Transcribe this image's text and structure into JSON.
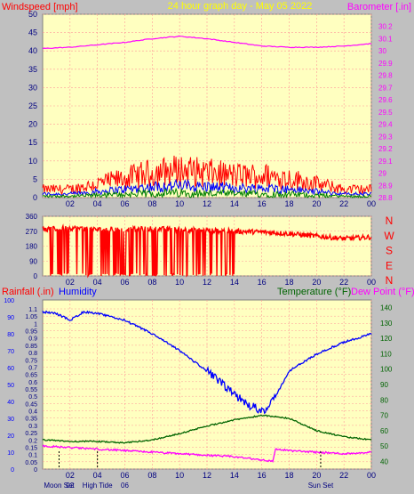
{
  "header": {
    "left_label": "Windspeed [mph]",
    "title": "24 hour graph day - May 05 2022",
    "right_label": "Barometer [.in]"
  },
  "colors": {
    "plot_bg": "#ffffc0",
    "frame_bg": "#c0c0c0",
    "wind": "#ff0000",
    "gust_fill": "#ff0000",
    "avg_wind": "#0000ff",
    "min_wind": "#008000",
    "barometer": "#ff00ff",
    "humidity": "#0000ff",
    "temperature": "#006400",
    "dewpoint": "#ff00ff",
    "grid": "#ff9999"
  },
  "chart_data": [
    {
      "type": "line",
      "title": "24 hour graph day - May 05 2022",
      "ylabel": "Windspeed [mph]",
      "y2label": "Barometer [.in]",
      "x_ticks": [
        "02",
        "04",
        "06",
        "08",
        "10",
        "12",
        "14",
        "16",
        "18",
        "20",
        "22",
        "00"
      ],
      "ylim": [
        0,
        50
      ],
      "y_ticks": [
        0,
        5,
        10,
        15,
        20,
        25,
        30,
        35,
        40,
        45,
        50
      ],
      "y2lim": [
        28.8,
        30.3
      ],
      "y2_ticks": [
        "28.8",
        "28.9",
        "29",
        "29.1",
        "29.2",
        "29.3",
        "29.4",
        "29.5",
        "29.6",
        "29.7",
        "29.8",
        "29.9",
        "30",
        "30.1",
        "30.2"
      ],
      "series": [
        {
          "name": "Windspeed",
          "x": [
            0,
            2,
            4,
            6,
            8,
            10,
            12,
            14,
            16,
            18,
            20,
            22,
            24
          ],
          "values": [
            3,
            3,
            5,
            7,
            9,
            10,
            9,
            8,
            8,
            7,
            5,
            3,
            3
          ]
        },
        {
          "name": "Barometer",
          "x": [
            0,
            2,
            4,
            6,
            8,
            10,
            12,
            14,
            16,
            18,
            20,
            22,
            24
          ],
          "values": [
            30.02,
            30.03,
            30.05,
            30.07,
            30.1,
            30.12,
            30.1,
            30.07,
            30.04,
            30.03,
            30.03,
            30.04,
            30.06
          ]
        }
      ]
    },
    {
      "type": "scatter",
      "title": "",
      "ylim": [
        0,
        360
      ],
      "y_ticks": [
        0,
        90,
        180,
        270,
        360
      ],
      "right_labels": [
        "N",
        "W",
        "S",
        "E",
        "N"
      ],
      "x_ticks": [
        "02",
        "04",
        "06",
        "08",
        "10",
        "12",
        "14",
        "16",
        "18",
        "20",
        "22",
        "00"
      ],
      "series": [
        {
          "name": "Wind direction",
          "x": [
            0,
            2,
            4,
            6,
            8,
            10,
            12,
            14,
            16,
            18,
            20,
            22,
            24
          ],
          "values": [
            280,
            290,
            280,
            280,
            285,
            280,
            275,
            270,
            265,
            255,
            240,
            225,
            235
          ]
        }
      ]
    },
    {
      "type": "line",
      "ylabel_left": "Rainfall (.in)",
      "ylabel_left2": "Humidity",
      "ylabel_right": "Temperature (°F)",
      "ylabel_right2": "Dew Point (°F)",
      "x_ticks": [
        "02",
        "04",
        "06",
        "08",
        "10",
        "12",
        "14",
        "16",
        "18",
        "20",
        "22",
        "00"
      ],
      "y_ticks_humidity": [
        0,
        10,
        20,
        30,
        40,
        50,
        60,
        70,
        80,
        90,
        100
      ],
      "y_ticks_rain": [
        "0",
        "0.05",
        "0.1",
        "0.15",
        "0.2",
        "0.25",
        "0.3",
        "0.35",
        "0.4",
        "0.45",
        "0.5",
        "0.55",
        "0.6",
        "0.65",
        "0.7",
        "0.75",
        "0.8",
        "0.85",
        "0.9",
        "0.95",
        "1",
        "1.05",
        "1.1"
      ],
      "y_ticks_temp": [
        40,
        50,
        60,
        70,
        80,
        90,
        100,
        110,
        120,
        130,
        140
      ],
      "ylim_humidity": [
        0,
        100
      ],
      "ylim_temp": [
        35,
        145
      ],
      "series": [
        {
          "name": "Humidity",
          "x": [
            0,
            1,
            2,
            3,
            4,
            6,
            8,
            10,
            12,
            14,
            15,
            16,
            16.5,
            17,
            18,
            20,
            22,
            24
          ],
          "values": [
            93,
            92,
            88,
            93,
            92,
            88,
            80,
            70,
            58,
            44,
            38,
            35,
            36,
            43,
            58,
            68,
            75,
            80
          ]
        },
        {
          "name": "Temperature",
          "x": [
            0,
            2,
            4,
            6,
            8,
            10,
            12,
            14,
            16,
            18,
            20,
            22,
            24
          ],
          "values": [
            54,
            53,
            53,
            52,
            54,
            58,
            63,
            67,
            70,
            68,
            60,
            56,
            54
          ]
        },
        {
          "name": "Dew Point",
          "x": [
            0,
            2,
            4,
            6,
            8,
            10,
            12,
            14,
            16,
            16.8,
            17,
            18,
            20,
            22,
            24
          ],
          "values": [
            50,
            49,
            48,
            47,
            46,
            45,
            44,
            43,
            41,
            40,
            48,
            47,
            46,
            45,
            46
          ]
        }
      ],
      "events": [
        {
          "label": "Moon Set",
          "x": 1.2
        },
        {
          "label": "02",
          "x": 2
        },
        {
          "label": "High Tide",
          "x": 4
        },
        {
          "label": "06",
          "x": 6
        },
        {
          "label": "Sun Set",
          "x": 20.3
        }
      ]
    }
  ]
}
